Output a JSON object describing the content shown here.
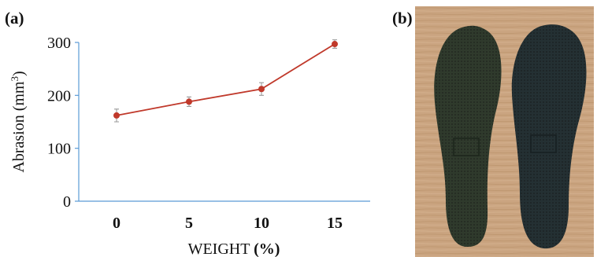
{
  "panels": {
    "a": "(a)",
    "b": "(b)"
  },
  "chart_data": {
    "type": "line",
    "title": "",
    "xlabel_main": "WEIGHT",
    "xlabel_unit": "(%)",
    "ylabel_main": "Abrasion (mm",
    "ylabel_sup": "3",
    "ylabel_tail": ")",
    "categories": [
      "0",
      "5",
      "10",
      "15"
    ],
    "series": [
      {
        "values": [
          162,
          188,
          212,
          297
        ],
        "errors": [
          12,
          9,
          12,
          8
        ],
        "color": "#c0392b"
      }
    ],
    "ylim": [
      0,
      300
    ],
    "yticks": [
      "0",
      "100",
      "200",
      "300"
    ],
    "grid": false,
    "axis_color": "#5b9bd5"
  },
  "photo": {
    "description_icon": "insole-pair-photo",
    "background_color": "#c9a47f",
    "insole_left_color": "#2f3a2c",
    "insole_right_color": "#243033"
  }
}
